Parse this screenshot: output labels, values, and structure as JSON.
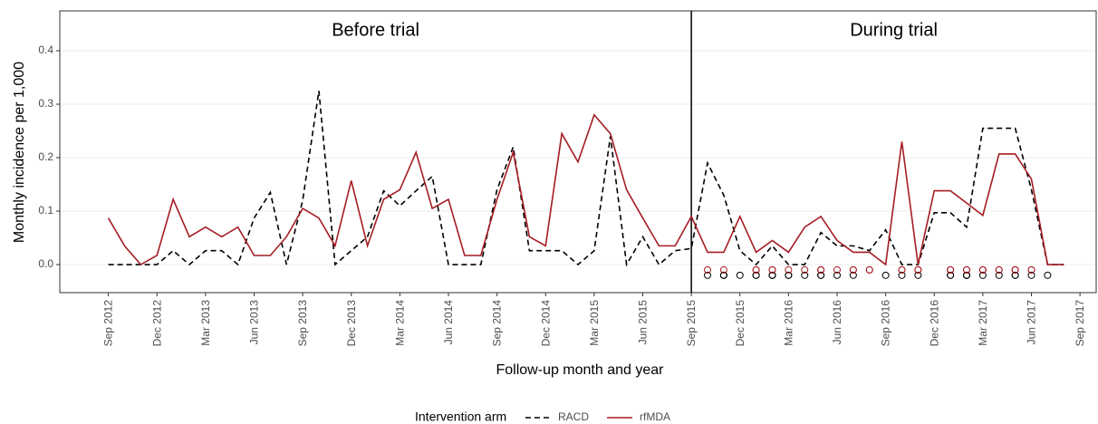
{
  "chart_data": {
    "type": "line",
    "annotations": [
      "Before trial",
      "During trial"
    ],
    "divider": "2015-09",
    "xlabel": "Follow-up month and year",
    "ylabel": "Monthly incidence per 1,000",
    "legend_title": "Intervention arm",
    "legend": "bottom",
    "grid": true,
    "xlim": [
      "2012-06",
      "2017-10"
    ],
    "ylim": [
      -0.0525,
      0.4746
    ],
    "yticks": [
      {
        "value": 0,
        "label": "0.0"
      },
      {
        "value": 0.1,
        "label": "0.1"
      },
      {
        "value": 0.2,
        "label": "0.2"
      },
      {
        "value": 0.3,
        "label": "0.3"
      },
      {
        "value": 0.4,
        "label": "0.4"
      }
    ],
    "xticks": [
      {
        "value": "2012-09",
        "label": "Sep 2012"
      },
      {
        "value": "2012-12",
        "label": "Dec 2012"
      },
      {
        "value": "2013-03",
        "label": "Mar 2013"
      },
      {
        "value": "2013-06",
        "label": "Jun 2013"
      },
      {
        "value": "2013-09",
        "label": "Sep 2013"
      },
      {
        "value": "2013-12",
        "label": "Dec 2013"
      },
      {
        "value": "2014-03",
        "label": "Mar 2014"
      },
      {
        "value": "2014-06",
        "label": "Jun 2014"
      },
      {
        "value": "2014-09",
        "label": "Sep 2014"
      },
      {
        "value": "2014-12",
        "label": "Dec 2014"
      },
      {
        "value": "2015-03",
        "label": "Mar 2015"
      },
      {
        "value": "2015-06",
        "label": "Jun 2015"
      },
      {
        "value": "2015-09",
        "label": "Sep 2015"
      },
      {
        "value": "2015-12",
        "label": "Dec 2015"
      },
      {
        "value": "2016-03",
        "label": "Mar 2016"
      },
      {
        "value": "2016-06",
        "label": "Jun 2016"
      },
      {
        "value": "2016-09",
        "label": "Sep 2016"
      },
      {
        "value": "2016-12",
        "label": "Dec 2016"
      },
      {
        "value": "2017-03",
        "label": "Mar 2017"
      },
      {
        "value": "2017-06",
        "label": "Jun 2017"
      },
      {
        "value": "2017-09",
        "label": "Sep 2017"
      }
    ],
    "x": [
      "2012-09",
      "2012-10",
      "2012-11",
      "2012-12",
      "2013-01",
      "2013-02",
      "2013-03",
      "2013-04",
      "2013-05",
      "2013-06",
      "2013-07",
      "2013-08",
      "2013-09",
      "2013-10",
      "2013-11",
      "2013-12",
      "2014-01",
      "2014-02",
      "2014-03",
      "2014-04",
      "2014-05",
      "2014-06",
      "2014-07",
      "2014-08",
      "2014-09",
      "2014-10",
      "2014-11",
      "2014-12",
      "2015-01",
      "2015-02",
      "2015-03",
      "2015-04",
      "2015-05",
      "2015-06",
      "2015-07",
      "2015-08",
      "2015-09",
      "2015-10",
      "2015-11",
      "2015-12",
      "2016-01",
      "2016-02",
      "2016-03",
      "2016-04",
      "2016-05",
      "2016-06",
      "2016-07",
      "2016-08",
      "2016-09",
      "2016-10",
      "2016-11",
      "2016-12",
      "2017-01",
      "2017-02",
      "2017-03",
      "2017-04",
      "2017-05",
      "2017-06",
      "2017-07",
      "2017-08"
    ],
    "series": [
      {
        "name": "RACD",
        "color": "#000000",
        "dash": true,
        "values": [
          0,
          0,
          0,
          0,
          0.026,
          0,
          0.026,
          0.026,
          0,
          0.087,
          0.135,
          0,
          0.12,
          0.325,
          0,
          0.026,
          0.052,
          0.138,
          0.11,
          0.138,
          0.165,
          0,
          0,
          0,
          0.14,
          0.22,
          0.026,
          0.026,
          0.026,
          0,
          0.026,
          0.24,
          0,
          0.052,
          0,
          0.026,
          0.03,
          0.19,
          0.13,
          0.026,
          0,
          0.035,
          0,
          0,
          0.06,
          0.035,
          0.035,
          0.026,
          0.065,
          0,
          0,
          0.097,
          0.097,
          0.07,
          0.255,
          0.255,
          0.255,
          0.14,
          0,
          0
        ],
        "events": {
          "y": -0.02,
          "x": [
            "2015-10",
            "2015-11",
            "2015-11",
            "2015-11",
            "2015-12",
            "2016-01",
            "2016-01",
            "2016-02",
            "2016-02",
            "2016-02",
            "2016-03",
            "2016-03",
            "2016-04",
            "2016-05",
            "2016-05",
            "2016-06",
            "2016-07",
            "2016-09",
            "2016-10",
            "2016-11",
            "2017-01",
            "2017-01",
            "2017-02",
            "2017-02",
            "2017-02",
            "2017-03",
            "2017-04",
            "2017-05",
            "2017-05",
            "2017-06",
            "2017-07"
          ]
        }
      },
      {
        "name": "rfMDA",
        "color": "#a51c24",
        "dash": false,
        "values": [
          0.087,
          0.035,
          0,
          0.017,
          0.122,
          0.052,
          0.07,
          0.052,
          0.07,
          0.017,
          0.017,
          0.052,
          0.105,
          0.087,
          0.035,
          0.157,
          0.035,
          0.122,
          0.14,
          0.21,
          0.105,
          0.122,
          0.017,
          0.017,
          0.122,
          0.21,
          0.052,
          0.035,
          0.245,
          0.192,
          0.28,
          0.245,
          0.14,
          0.087,
          0.035,
          0.035,
          0.09,
          0.023,
          0.023,
          0.09,
          0.023,
          0.045,
          0.023,
          0.07,
          0.09,
          0.045,
          0.023,
          0.023,
          0,
          0.23,
          0,
          0.138,
          0.138,
          0.115,
          0.092,
          0.207,
          0.207,
          0.16,
          0,
          0
        ],
        "events": {
          "y": -0.01,
          "x": [
            "2015-10",
            "2015-11",
            "2016-01",
            "2016-01",
            "2016-02",
            "2016-02",
            "2016-03",
            "2016-04",
            "2016-05",
            "2016-05",
            "2016-05",
            "2016-06",
            "2016-07",
            "2016-07",
            "2016-08",
            "2016-08",
            "2016-10",
            "2016-10",
            "2016-11",
            "2016-11",
            "2016-11",
            "2017-01",
            "2017-01",
            "2017-01",
            "2017-02",
            "2017-02",
            "2017-03",
            "2017-03",
            "2017-03",
            "2017-04",
            "2017-04",
            "2017-05",
            "2017-05",
            "2017-05",
            "2017-06",
            "2017-06"
          ]
        }
      }
    ]
  }
}
